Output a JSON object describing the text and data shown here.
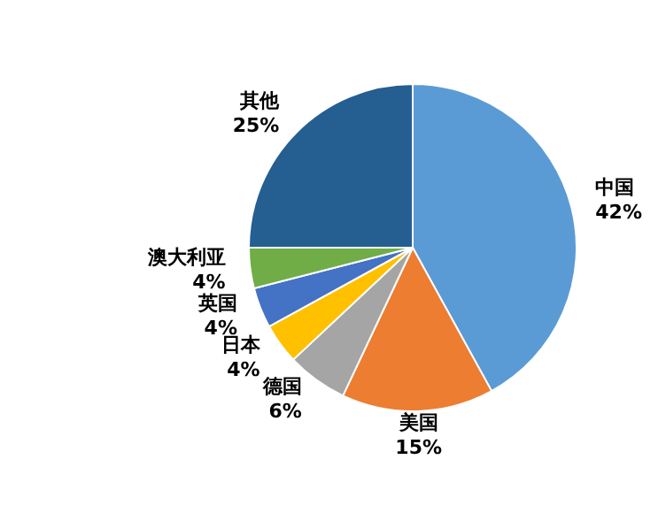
{
  "chart_data": {
    "type": "pie",
    "categories": [
      "中国",
      "美国",
      "德国",
      "日本",
      "英国",
      "澳大利亚",
      "其他"
    ],
    "values": [
      42,
      15,
      6,
      4,
      4,
      4,
      25
    ],
    "colors": [
      "#5b9bd5",
      "#ed7d31",
      "#a5a5a5",
      "#ffc000",
      "#4472c4",
      "#70ad47",
      "#255e91"
    ],
    "value_labels": [
      "42%",
      "15%",
      "6%",
      "4%",
      "4%",
      "4%",
      "25%"
    ],
    "legend": false
  }
}
